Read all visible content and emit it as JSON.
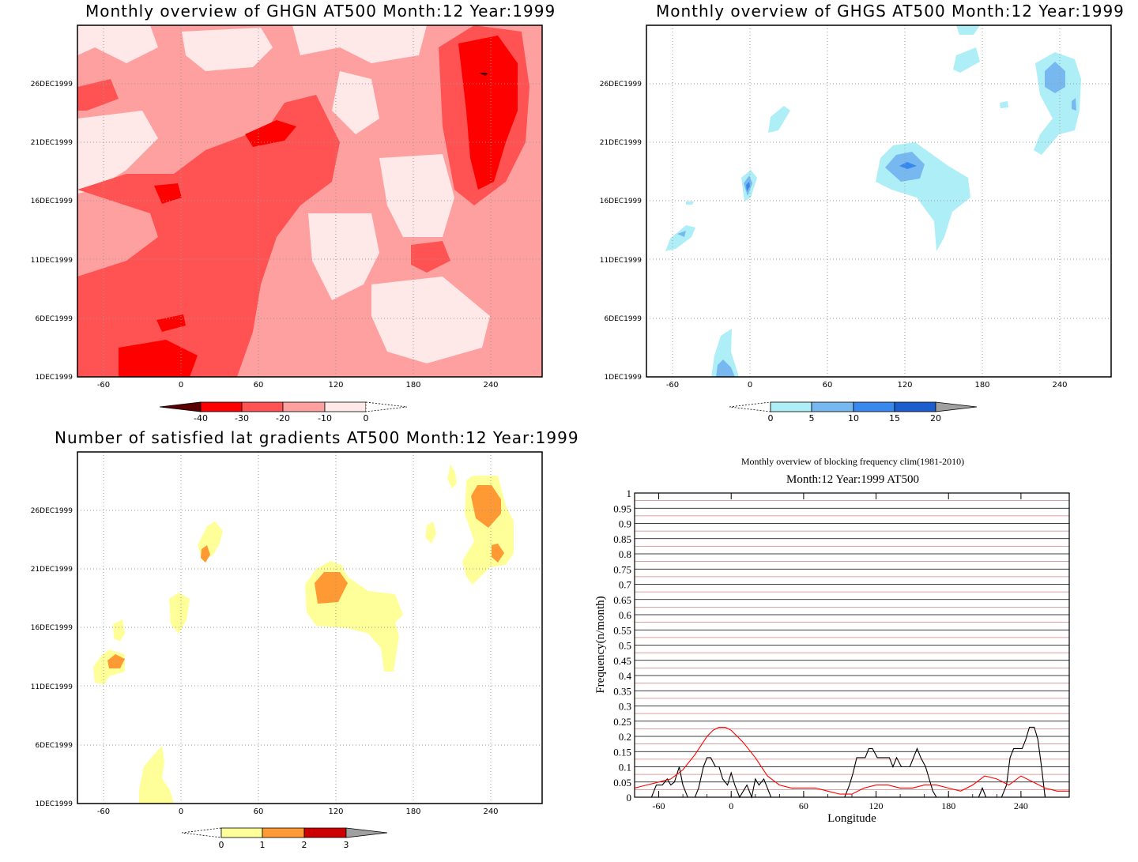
{
  "panels": {
    "ghgn": {
      "title": "Monthly overview of GHGN AT500 Month:12 Year:1999",
      "colorbar": {
        "labels": [
          "-40",
          "-30",
          "-20",
          "-10",
          "0"
        ],
        "colors": [
          "#5a0000",
          "#ff0000",
          "#ff5252",
          "#ffa0a0",
          "#ffe8e8",
          "#ffffff"
        ]
      }
    },
    "ghgs": {
      "title": "Monthly overview of GHGS AT500 Month:12 Year:1999",
      "colorbar": {
        "labels": [
          "0",
          "5",
          "10",
          "15",
          "20"
        ],
        "colors": [
          "#ffffff",
          "#aeeef6",
          "#78b8f0",
          "#3888ee",
          "#1c5ed0",
          "#a0a0a0"
        ]
      }
    },
    "gradients": {
      "title": "Number of satisfied lat gradients AT500 Month:12 Year:1999",
      "colorbar": {
        "labels": [
          "0",
          "1",
          "2",
          "3"
        ],
        "colors": [
          "#ffffff",
          "#ffff99",
          "#ff9933",
          "#cc0000",
          "#a0a0a0"
        ]
      }
    },
    "frequency": {
      "title": "Monthly overview of blocking frequency clim(1981-2010)",
      "subtitle": "Month:12 Year:1999  AT500"
    }
  },
  "map_axes": {
    "x_ticks": [
      "-60",
      "0",
      "60",
      "120",
      "180",
      "240"
    ],
    "y_ticks": [
      "1DEC1999",
      "6DEC1999",
      "11DEC1999",
      "16DEC1999",
      "21DEC1999",
      "26DEC1999"
    ]
  },
  "chart_data": [
    {
      "type": "line",
      "title": "Monthly overview of blocking frequency clim(1981-2010)",
      "subtitle": "Month:12 Year:1999  AT500",
      "xlabel": "Longitude",
      "ylabel": "Frequency(n/month)",
      "xlim": [
        -80,
        280
      ],
      "ylim": [
        0,
        1
      ],
      "x_ticks": [
        "-60",
        "0",
        "60",
        "120",
        "180",
        "240"
      ],
      "y_ticks": [
        "0",
        "0.05",
        "0.1",
        "0.15",
        "0.2",
        "0.25",
        "0.3",
        "0.35",
        "0.4",
        "0.45",
        "0.5",
        "0.55",
        "0.6",
        "0.65",
        "0.7",
        "0.75",
        "0.8",
        "0.85",
        "0.9",
        "0.95",
        "1"
      ],
      "grid": true,
      "series": [
        {
          "color": "#000000",
          "x": [
            -80,
            -66,
            -62,
            -60,
            -57,
            -53,
            -50,
            -47,
            -43,
            -40,
            -36,
            -33,
            -30,
            -27,
            -23,
            -20,
            -17,
            -13,
            -10,
            -7,
            -3,
            0,
            3,
            7,
            10,
            13,
            17,
            20,
            23,
            27,
            30,
            33,
            60,
            94,
            98,
            101,
            104,
            108,
            111,
            114,
            117,
            121,
            124,
            128,
            131,
            134,
            137,
            141,
            144,
            148,
            151,
            154,
            157,
            161,
            164,
            167,
            170,
            174,
            177,
            180,
            205,
            208,
            211,
            214,
            217,
            221,
            224,
            228,
            231,
            234,
            237,
            241,
            244,
            247,
            251,
            254,
            257,
            260,
            280
          ],
          "y": [
            0,
            0,
            0.04,
            0.04,
            0.04,
            0.06,
            0.04,
            0.05,
            0.1,
            0.04,
            0,
            0,
            0,
            0.03,
            0.1,
            0.13,
            0.13,
            0.1,
            0.1,
            0.06,
            0.04,
            0.08,
            0.04,
            0,
            0.02,
            0.04,
            0,
            0.06,
            0.04,
            0.06,
            0.03,
            0,
            0,
            0,
            0.04,
            0.08,
            0.13,
            0.13,
            0.13,
            0.16,
            0.16,
            0.13,
            0.13,
            0.13,
            0.13,
            0.1,
            0.13,
            0.1,
            0.1,
            0.1,
            0.13,
            0.16,
            0.13,
            0.1,
            0.06,
            0.02,
            0,
            0,
            0,
            0,
            0,
            0.03,
            0,
            0,
            0,
            0,
            0,
            0.04,
            0.13,
            0.16,
            0.16,
            0.16,
            0.19,
            0.23,
            0.23,
            0.19,
            0.1,
            0,
            0
          ]
        },
        {
          "color": "#ff0000",
          "x": [
            -80,
            -70,
            -60,
            -50,
            -40,
            -30,
            -20,
            -15,
            -10,
            -5,
            0,
            5,
            10,
            20,
            30,
            40,
            50,
            60,
            70,
            80,
            90,
            100,
            110,
            120,
            130,
            140,
            150,
            160,
            170,
            180,
            190,
            200,
            210,
            220,
            230,
            240,
            250,
            260,
            270,
            280
          ],
          "y": [
            0.03,
            0.04,
            0.05,
            0.06,
            0.09,
            0.14,
            0.2,
            0.22,
            0.23,
            0.23,
            0.22,
            0.2,
            0.18,
            0.13,
            0.07,
            0.04,
            0.03,
            0.03,
            0.03,
            0.02,
            0.01,
            0.01,
            0.03,
            0.04,
            0.04,
            0.03,
            0.03,
            0.04,
            0.04,
            0.03,
            0.02,
            0.04,
            0.07,
            0.06,
            0.04,
            0.07,
            0.05,
            0.03,
            0.02,
            0.02
          ]
        }
      ]
    }
  ]
}
